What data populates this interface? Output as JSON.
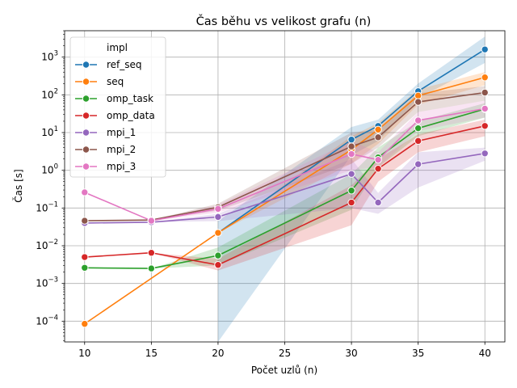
{
  "chart_data": {
    "type": "line",
    "title": "Čas běhu vs velikost grafu (n)",
    "xlabel": "Počet uzlů (n)",
    "ylabel": "Čas [s]",
    "yscale": "log",
    "grid": true,
    "xlim": [
      8.5,
      41.5
    ],
    "ylim_log10": [
      -4.55,
      3.7
    ],
    "xticks": [
      10,
      15,
      20,
      25,
      30,
      35,
      40
    ],
    "yticks": [
      {
        "value": 0.0001,
        "base": "10",
        "exp": "−4"
      },
      {
        "value": 0.001,
        "base": "10",
        "exp": "−3"
      },
      {
        "value": 0.01,
        "base": "10",
        "exp": "−2"
      },
      {
        "value": 0.1,
        "base": "10",
        "exp": "−1"
      },
      {
        "value": 1,
        "base": "10",
        "exp": "0"
      },
      {
        "value": 10,
        "base": "10",
        "exp": "1"
      },
      {
        "value": 100,
        "base": "10",
        "exp": "2"
      },
      {
        "value": 1000,
        "base": "10",
        "exp": "3"
      }
    ],
    "legend": {
      "title": "impl",
      "placement": "upper-left"
    },
    "series": [
      {
        "name": "ref_seq",
        "color": "#1f77b4",
        "x": [
          20,
          30,
          32,
          35,
          40
        ],
        "y": [
          0.022,
          6.5,
          15,
          125,
          1600
        ],
        "band_low": [
          1e-05,
          2.5,
          6,
          80,
          700
        ],
        "band_high": [
          0.045,
          14,
          22,
          200,
          3500
        ]
      },
      {
        "name": "seq",
        "color": "#ff7f0e",
        "x": [
          10,
          20,
          30,
          32,
          35,
          40
        ],
        "y": [
          8.5e-05,
          0.022,
          3.5,
          12,
          95,
          290
        ],
        "band_low": [
          8.5e-05,
          0.022,
          1.5,
          5,
          55,
          180
        ],
        "band_high": [
          8.5e-05,
          0.022,
          8,
          18,
          140,
          400
        ]
      },
      {
        "name": "omp_task",
        "color": "#2ca02c",
        "x": [
          10,
          15,
          20,
          30,
          32,
          35,
          40
        ],
        "y": [
          0.0026,
          0.0025,
          0.0055,
          0.29,
          2.2,
          13,
          42
        ],
        "band_low": [
          0.0026,
          0.0025,
          0.003,
          0.09,
          1.2,
          8,
          25
        ],
        "band_high": [
          0.0026,
          0.0025,
          0.009,
          0.8,
          4,
          20,
          60
        ]
      },
      {
        "name": "omp_data",
        "color": "#d62728",
        "x": [
          10,
          15,
          20,
          30,
          32,
          35,
          40
        ],
        "y": [
          0.005,
          0.0065,
          0.0031,
          0.14,
          1.1,
          6,
          15
        ],
        "band_low": [
          0.005,
          0.0065,
          0.0022,
          0.035,
          0.5,
          3,
          8
        ],
        "band_high": [
          0.005,
          0.0065,
          0.0045,
          0.4,
          2,
          9,
          22
        ]
      },
      {
        "name": "mpi_1",
        "color": "#9467bd",
        "x": [
          10,
          15,
          20,
          30,
          32,
          35,
          40
        ],
        "y": [
          0.04,
          0.042,
          0.058,
          0.8,
          0.14,
          1.45,
          2.8
        ],
        "band_low": [
          0.04,
          0.042,
          0.045,
          0.1,
          0.07,
          0.35,
          1.8
        ],
        "band_high": [
          0.04,
          0.042,
          0.07,
          2,
          0.25,
          3,
          4
        ]
      },
      {
        "name": "mpi_2",
        "color": "#8c564b",
        "x": [
          10,
          15,
          20,
          30,
          32,
          35,
          40
        ],
        "y": [
          0.046,
          0.048,
          0.105,
          4.3,
          7.5,
          65,
          115
        ],
        "band_low": [
          0.046,
          0.048,
          0.085,
          1.5,
          4,
          35,
          70
        ],
        "band_high": [
          0.046,
          0.048,
          0.13,
          10,
          12,
          110,
          170
        ]
      },
      {
        "name": "mpi_3",
        "color": "#e377c2",
        "x": [
          10,
          15,
          20,
          30,
          32,
          35,
          40
        ],
        "y": [
          0.26,
          0.046,
          0.095,
          2.7,
          1.9,
          21,
          43
        ],
        "band_low": [
          0.26,
          0.046,
          0.075,
          1,
          1.2,
          11,
          25
        ],
        "band_high": [
          0.26,
          0.046,
          0.12,
          6,
          3,
          35,
          70
        ]
      }
    ]
  }
}
